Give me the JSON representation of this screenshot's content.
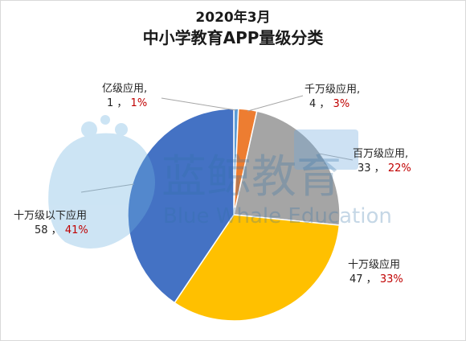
{
  "chart_data": {
    "type": "pie",
    "title": "2020年3月",
    "subtitle": "中小学教育APP量级分类",
    "slices": [
      {
        "label": "亿级应用",
        "count": 1,
        "percent": 1,
        "percent_text": "1%",
        "color": "#5b9bd5"
      },
      {
        "label": "千万级应用",
        "count": 4,
        "percent": 3,
        "percent_text": "3%",
        "color": "#ed7d31"
      },
      {
        "label": "百万级应用",
        "count": 33,
        "percent": 22,
        "percent_text": "22%",
        "color": "#a5a5a5"
      },
      {
        "label": "十万级应用",
        "count": 47,
        "percent": 33,
        "percent_text": "33%",
        "color": "#ffc000"
      },
      {
        "label": "十万级以下应用",
        "count": 58,
        "percent": 41,
        "percent_text": "41%",
        "color": "#4472c4"
      }
    ]
  },
  "labels": {
    "sep": ","
  },
  "watermark": {
    "text_cn": "蓝鲸教育",
    "text_en": "Blue Whale Education"
  }
}
